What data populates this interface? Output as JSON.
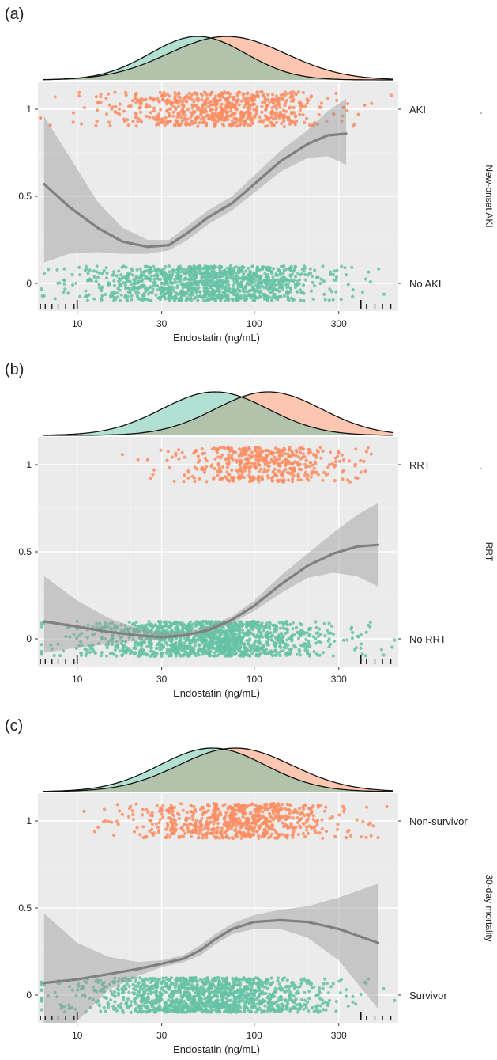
{
  "chart_data": [
    {
      "type": "scatter",
      "panel_label": "(a)",
      "xlabel": "Endostatin (ng/mL)",
      "xscale": "log10",
      "xlim": [
        6,
        650
      ],
      "x_ticks": [
        10,
        30,
        100,
        300
      ],
      "x_tick_labels": [
        "10",
        "30",
        "100",
        "300"
      ],
      "ylim": [
        -0.1,
        1.1
      ],
      "y_ticks": [
        0,
        0.5,
        1
      ],
      "y_tick_labels": [
        "0",
        "0.5",
        "1"
      ],
      "group_labels": [
        "No AKI",
        "AKI"
      ],
      "strip_label": "New-onset AKI",
      "grid": true,
      "density": {
        "negative": {
          "mode": 48,
          "sd_log": 0.27,
          "color": "#66c2a5"
        },
        "positive": {
          "mode": 70,
          "sd_log": 0.33,
          "color": "#fc8d62"
        }
      },
      "jitter": {
        "negative": {
          "center": 55,
          "sd_log": 0.33,
          "n": 1200,
          "outliers": [
            6.5,
            7.5,
            270,
            280
          ],
          "color": "#66c2a5"
        },
        "positive": {
          "center": 65,
          "sd_log": 0.3,
          "n": 700,
          "outliers": [
            6.2,
            9.5,
            420,
            460
          ],
          "color": "#fc8d62"
        }
      },
      "smooth": {
        "x": [
          6.5,
          9,
          13,
          18,
          25,
          33,
          42,
          55,
          75,
          100,
          140,
          200,
          260,
          330
        ],
        "y": [
          0.57,
          0.44,
          0.32,
          0.24,
          0.21,
          0.22,
          0.29,
          0.38,
          0.46,
          0.57,
          0.7,
          0.8,
          0.85,
          0.86
        ],
        "lower": [
          0.12,
          0.17,
          0.18,
          0.17,
          0.17,
          0.19,
          0.25,
          0.34,
          0.42,
          0.52,
          0.64,
          0.72,
          0.73,
          0.68
        ],
        "upper": [
          0.96,
          0.73,
          0.47,
          0.32,
          0.25,
          0.25,
          0.33,
          0.42,
          0.5,
          0.62,
          0.76,
          0.88,
          0.99,
          1.06
        ]
      },
      "rug_ticks": [
        6.2,
        6.6,
        7.2,
        7.8,
        8.6,
        9.6,
        430,
        480,
        530,
        590
      ]
    },
    {
      "type": "scatter",
      "panel_label": "(b)",
      "xlabel": "Endostatin (ng/mL)",
      "xscale": "log10",
      "xlim": [
        6,
        650
      ],
      "x_ticks": [
        10,
        30,
        100,
        300
      ],
      "x_tick_labels": [
        "10",
        "30",
        "100",
        "300"
      ],
      "ylim": [
        -0.1,
        1.1
      ],
      "y_ticks": [
        0,
        0.5,
        1
      ],
      "y_tick_labels": [
        "0",
        "0.5",
        "1"
      ],
      "group_labels": [
        "No RRT",
        "RRT"
      ],
      "strip_label": "RRT",
      "grid": true,
      "density": {
        "negative": {
          "mode": 60,
          "sd_log": 0.3,
          "color": "#66c2a5"
        },
        "positive": {
          "mode": 120,
          "sd_log": 0.3,
          "color": "#fc8d62"
        }
      },
      "jitter": {
        "negative": {
          "center": 55,
          "sd_log": 0.34,
          "n": 1400,
          "outliers": [
            6.5,
            7.2,
            320,
            600
          ],
          "color": "#66c2a5"
        },
        "positive": {
          "center": 115,
          "sd_log": 0.25,
          "n": 450,
          "outliers": [
            18,
            25,
            320
          ],
          "color": "#fc8d62"
        }
      },
      "smooth": {
        "x": [
          6.5,
          10,
          15,
          22,
          30,
          40,
          55,
          75,
          100,
          140,
          200,
          280,
          380,
          500
        ],
        "y": [
          0.1,
          0.07,
          0.04,
          0.02,
          0.01,
          0.02,
          0.05,
          0.11,
          0.19,
          0.31,
          0.42,
          0.49,
          0.53,
          0.54
        ],
        "lower": [
          -0.08,
          -0.05,
          -0.03,
          -0.01,
          0.0,
          0.01,
          0.04,
          0.09,
          0.16,
          0.26,
          0.35,
          0.38,
          0.36,
          0.3
        ],
        "upper": [
          0.36,
          0.22,
          0.12,
          0.06,
          0.04,
          0.04,
          0.07,
          0.13,
          0.22,
          0.36,
          0.49,
          0.61,
          0.71,
          0.78
        ]
      },
      "rug_ticks": [
        6.2,
        6.6,
        7.2,
        7.8,
        8.6,
        9.6,
        430,
        480,
        530,
        590
      ]
    },
    {
      "type": "scatter",
      "panel_label": "(c)",
      "xlabel": "Endostatin (ng/mL)",
      "xscale": "log10",
      "xlim": [
        6,
        650
      ],
      "x_ticks": [
        10,
        30,
        100,
        300
      ],
      "x_tick_labels": [
        "10",
        "30",
        "100",
        "300"
      ],
      "ylim": [
        -0.1,
        1.1
      ],
      "y_ticks": [
        0,
        0.5,
        1
      ],
      "y_tick_labels": [
        "0",
        "0.5",
        "1"
      ],
      "group_labels": [
        "Survivor",
        "Non-survivor"
      ],
      "strip_label": "30-day mortality",
      "grid": true,
      "density": {
        "negative": {
          "mode": 58,
          "sd_log": 0.3,
          "color": "#66c2a5"
        },
        "positive": {
          "mode": 78,
          "sd_log": 0.32,
          "color": "#fc8d62"
        }
      },
      "jitter": {
        "negative": {
          "center": 55,
          "sd_log": 0.34,
          "n": 1300,
          "outliers": [
            6.5,
            7.5,
            9,
            330,
            360
          ],
          "color": "#66c2a5"
        },
        "positive": {
          "center": 80,
          "sd_log": 0.3,
          "n": 700,
          "outliers": [
            15,
            18,
            330,
            560
          ],
          "color": "#fc8d62"
        }
      },
      "smooth": {
        "x": [
          6.5,
          10,
          15,
          22,
          30,
          40,
          50,
          60,
          75,
          100,
          140,
          200,
          300,
          500
        ],
        "y": [
          0.07,
          0.09,
          0.12,
          0.15,
          0.18,
          0.21,
          0.26,
          0.32,
          0.38,
          0.42,
          0.43,
          0.42,
          0.38,
          0.3
        ],
        "lower": [
          -0.4,
          -0.15,
          0.03,
          0.11,
          0.16,
          0.19,
          0.23,
          0.29,
          0.35,
          0.38,
          0.38,
          0.33,
          0.2,
          -0.08
        ],
        "upper": [
          0.47,
          0.3,
          0.22,
          0.19,
          0.2,
          0.23,
          0.29,
          0.35,
          0.41,
          0.46,
          0.49,
          0.51,
          0.56,
          0.64
        ]
      },
      "rug_ticks": [
        6.2,
        6.6,
        7.2,
        7.8,
        8.6,
        9.6,
        430,
        480,
        530,
        590
      ]
    }
  ]
}
